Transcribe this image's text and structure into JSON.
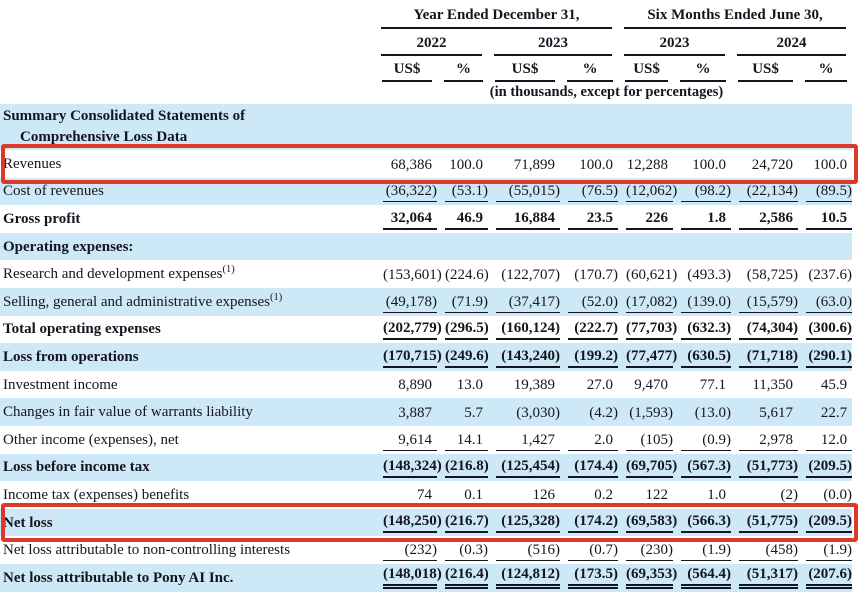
{
  "header": {
    "group1": "Year Ended December 31,",
    "group2": "Six Months Ended June 30,",
    "years": [
      "2022",
      "2023",
      "2023",
      "2024"
    ],
    "unit_currency": "US$",
    "unit_percent": "%",
    "note": "(in thousands, except for percentages)"
  },
  "colors": {
    "shade": "#cde8f6",
    "highlight": "#dc392b",
    "text": "#15151f"
  },
  "rows": [
    {
      "label": "Summary Consolidated Statements of",
      "label2": "Comprehensive Loss Data",
      "bold": true,
      "shade": true,
      "underline": "none",
      "highlight": false,
      "values": []
    },
    {
      "label": "Revenues",
      "bold": false,
      "shade": false,
      "underline": "none",
      "highlight": true,
      "values": [
        "68,386",
        "100.0",
        "71,899",
        "100.0",
        "12,288",
        "100.0",
        "24,720",
        "100.0"
      ]
    },
    {
      "label": "Cost of revenues",
      "bold": false,
      "shade": true,
      "underline": "single",
      "highlight": false,
      "values": [
        "(36,322)",
        "(53.1)",
        "(55,015)",
        "(76.5)",
        "(12,062)",
        "(98.2)",
        "(22,134)",
        "(89.5)"
      ]
    },
    {
      "label": "Gross profit",
      "bold": true,
      "shade": false,
      "underline": "single",
      "highlight": false,
      "values": [
        "32,064",
        "46.9",
        "16,884",
        "23.5",
        "226",
        "1.8",
        "2,586",
        "10.5"
      ]
    },
    {
      "label": "Operating expenses:",
      "bold": true,
      "shade": true,
      "underline": "none",
      "highlight": false,
      "values": []
    },
    {
      "label": "Research and development expenses",
      "sup": "(1)",
      "bold": false,
      "shade": false,
      "underline": "none",
      "highlight": false,
      "values": [
        "(153,601)",
        "(224.6)",
        "(122,707)",
        "(170.7)",
        "(60,621)",
        "(493.3)",
        "(58,725)",
        "(237.6)"
      ]
    },
    {
      "label": "Selling, general and administrative expenses",
      "sup": "(1)",
      "bold": false,
      "shade": true,
      "underline": "single",
      "highlight": false,
      "values": [
        "(49,178)",
        "(71.9)",
        "(37,417)",
        "(52.0)",
        "(17,082)",
        "(139.0)",
        "(15,579)",
        "(63.0)"
      ]
    },
    {
      "label": "Total operating expenses",
      "bold": true,
      "shade": false,
      "underline": "single",
      "highlight": false,
      "values": [
        "(202,779)",
        "(296.5)",
        "(160,124)",
        "(222.7)",
        "(77,703)",
        "(632.3)",
        "(74,304)",
        "(300.6)"
      ]
    },
    {
      "label": "Loss from operations",
      "bold": true,
      "shade": true,
      "underline": "single",
      "highlight": false,
      "values": [
        "(170,715)",
        "(249.6)",
        "(143,240)",
        "(199.2)",
        "(77,477)",
        "(630.5)",
        "(71,718)",
        "(290.1)"
      ]
    },
    {
      "label": "Investment income",
      "bold": false,
      "shade": false,
      "underline": "none",
      "highlight": false,
      "values": [
        "8,890",
        "13.0",
        "19,389",
        "27.0",
        "9,470",
        "77.1",
        "11,350",
        "45.9"
      ]
    },
    {
      "label": "Changes in fair value of warrants liability",
      "bold": false,
      "shade": true,
      "underline": "none",
      "highlight": false,
      "values": [
        "3,887",
        "5.7",
        "(3,030)",
        "(4.2)",
        "(1,593)",
        "(13.0)",
        "5,617",
        "22.7"
      ]
    },
    {
      "label": "Other income (expenses), net",
      "bold": false,
      "shade": false,
      "underline": "single",
      "highlight": false,
      "values": [
        "9,614",
        "14.1",
        "1,427",
        "2.0",
        "(105)",
        "(0.9)",
        "2,978",
        "12.0"
      ]
    },
    {
      "label": "Loss before income tax",
      "bold": true,
      "shade": true,
      "underline": "single",
      "highlight": false,
      "values": [
        "(148,324)",
        "(216.8)",
        "(125,454)",
        "(174.4)",
        "(69,705)",
        "(567.3)",
        "(51,773)",
        "(209.5)"
      ]
    },
    {
      "label": "Income tax (expenses) benefits",
      "bold": false,
      "shade": false,
      "underline": "single",
      "highlight": false,
      "values": [
        "74",
        "0.1",
        "126",
        "0.2",
        "122",
        "1.0",
        "(2)",
        "(0.0)"
      ]
    },
    {
      "label": "Net loss",
      "bold": true,
      "shade": true,
      "underline": "single",
      "highlight": true,
      "values": [
        "(148,250)",
        "(216.7)",
        "(125,328)",
        "(174.2)",
        "(69,583)",
        "(566.3)",
        "(51,775)",
        "(209.5)"
      ]
    },
    {
      "label": "Net loss attributable to non-controlling interests",
      "bold": false,
      "shade": false,
      "underline": "single",
      "highlight": false,
      "values": [
        "(232)",
        "(0.3)",
        "(516)",
        "(0.7)",
        "(230)",
        "(1.9)",
        "(458)",
        "(1.9)"
      ]
    },
    {
      "label": "Net loss attributable to Pony AI Inc.",
      "bold": true,
      "shade": true,
      "underline": "double",
      "highlight": false,
      "values": [
        "(148,018)",
        "(216.4)",
        "(124,812)",
        "(173.5)",
        "(69,353)",
        "(564.4)",
        "(51,317)",
        "(207.6)"
      ]
    }
  ]
}
